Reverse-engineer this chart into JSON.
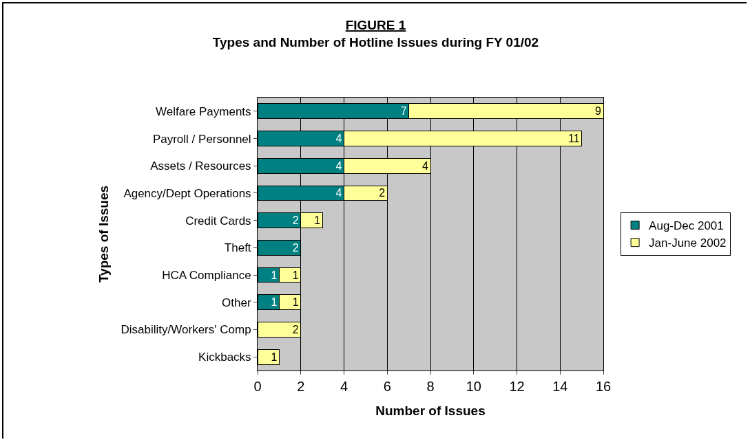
{
  "chart_data": {
    "type": "bar",
    "orientation": "horizontal",
    "stacked": true,
    "title": "FIGURE 1",
    "subtitle": "Types and Number of Hotline Issues during FY 01/02",
    "xlabel": "Number of Issues",
    "ylabel": "Types of Issues",
    "categories": [
      "Welfare Payments",
      "Payroll / Personnel",
      "Assets / Resources",
      "Agency/Dept Operations",
      "Credit Cards",
      "Theft",
      "HCA Compliance",
      "Other",
      "Disability/Workers' Comp",
      "Kickbacks"
    ],
    "series": [
      {
        "name": "Aug-Dec 2001",
        "color": "#008080",
        "values": [
          7,
          4,
          4,
          4,
          2,
          2,
          1,
          1,
          null,
          null
        ]
      },
      {
        "name": "Jan-June 2002",
        "color": "#ffff99",
        "values": [
          9,
          11,
          4,
          2,
          1,
          null,
          1,
          1,
          2,
          1
        ]
      }
    ],
    "xlim": [
      0,
      16
    ],
    "xticks": [
      0,
      2,
      4,
      6,
      8,
      10,
      12,
      14,
      16
    ],
    "grid": "x",
    "legend": "right",
    "data_labels": true
  }
}
